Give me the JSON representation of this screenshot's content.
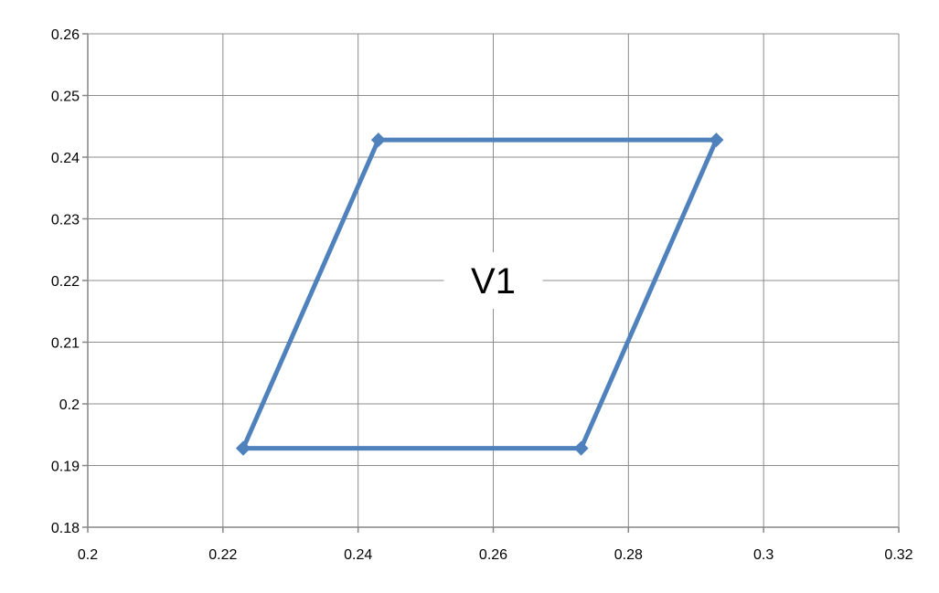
{
  "chart_data": {
    "type": "scatter",
    "title": "",
    "xlabel": "",
    "ylabel": "",
    "xlim": [
      0.2,
      0.32
    ],
    "ylim": [
      0.18,
      0.26
    ],
    "x_ticks": [
      0.2,
      0.22,
      0.24,
      0.26,
      0.28,
      0.3,
      0.32
    ],
    "x_tick_labels": [
      "0.2",
      "0.22",
      "0.24",
      "0.26",
      "0.28",
      "0.3",
      "0.32"
    ],
    "y_ticks": [
      0.18,
      0.19,
      0.2,
      0.21,
      0.22,
      0.23,
      0.24,
      0.25,
      0.26
    ],
    "y_tick_labels": [
      "0.18",
      "0.19",
      "0.2",
      "0.21",
      "0.22",
      "0.23",
      "0.24",
      "0.25",
      "0.26"
    ],
    "grid": true,
    "legend": "none",
    "series": [
      {
        "points": [
          {
            "x": 0.223,
            "y": 0.1928
          },
          {
            "x": 0.243,
            "y": 0.2428
          },
          {
            "x": 0.293,
            "y": 0.2428
          },
          {
            "x": 0.273,
            "y": 0.1928
          },
          {
            "x": 0.223,
            "y": 0.1928
          }
        ],
        "color": "#4f81bd",
        "marker": "diamond",
        "line": true
      }
    ],
    "annotations": [
      {
        "text": "V1",
        "x": 0.26,
        "y": 0.22
      }
    ]
  }
}
